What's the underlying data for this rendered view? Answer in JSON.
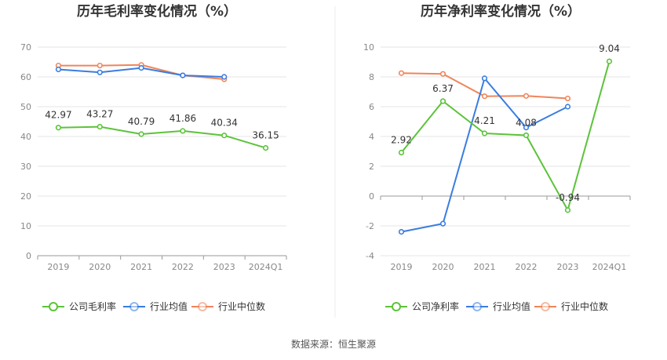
{
  "source_text": "数据来源：恒生聚源",
  "colors": {
    "company": "#5cc33a",
    "industry_avg": "#3a7de0",
    "industry_median": "#f0855a",
    "grid": "#e6e6e6",
    "axis": "#999999"
  },
  "chart_data": [
    {
      "type": "line",
      "title": "历年毛利率变化情况（%）",
      "categories": [
        "2019",
        "2020",
        "2021",
        "2022",
        "2023",
        "2024Q1"
      ],
      "ylim": [
        0,
        70
      ],
      "yticks": [
        0,
        10,
        20,
        30,
        40,
        50,
        60,
        70
      ],
      "grid": true,
      "legend_position": "bottom",
      "series": [
        {
          "name": "公司毛利率",
          "values": [
            42.97,
            43.27,
            40.79,
            41.86,
            40.34,
            36.15
          ],
          "labels": [
            "42.97",
            "43.27",
            "40.79",
            "41.86",
            "40.34",
            "36.15"
          ],
          "color": "#5cc33a"
        },
        {
          "name": "行业均值",
          "values": [
            62.5,
            61.5,
            63.0,
            60.5,
            60.0,
            null
          ],
          "color": "#3a7de0"
        },
        {
          "name": "行业中位数",
          "values": [
            63.8,
            63.8,
            64.0,
            60.5,
            59.2,
            null
          ],
          "color": "#f0855a"
        }
      ]
    },
    {
      "type": "line",
      "title": "历年净利率变化情况（%）",
      "categories": [
        "2019",
        "2020",
        "2021",
        "2022",
        "2023",
        "2024Q1"
      ],
      "ylim": [
        -4,
        10
      ],
      "yticks": [
        -4,
        -2,
        0,
        2,
        4,
        6,
        8,
        10
      ],
      "grid": true,
      "legend_position": "bottom",
      "series": [
        {
          "name": "公司净利率",
          "values": [
            2.92,
            6.37,
            4.21,
            4.08,
            -0.94,
            9.04
          ],
          "labels": [
            "2.92",
            "6.37",
            "4.21",
            "4.08",
            "-0.94",
            "9.04"
          ],
          "color": "#5cc33a"
        },
        {
          "name": "行业均值",
          "values": [
            -2.4,
            -1.85,
            7.9,
            4.6,
            6.0,
            null
          ],
          "color": "#3a7de0"
        },
        {
          "name": "行业中位数",
          "values": [
            8.25,
            8.2,
            6.7,
            6.72,
            6.55,
            null
          ],
          "color": "#f0855a"
        }
      ]
    }
  ]
}
